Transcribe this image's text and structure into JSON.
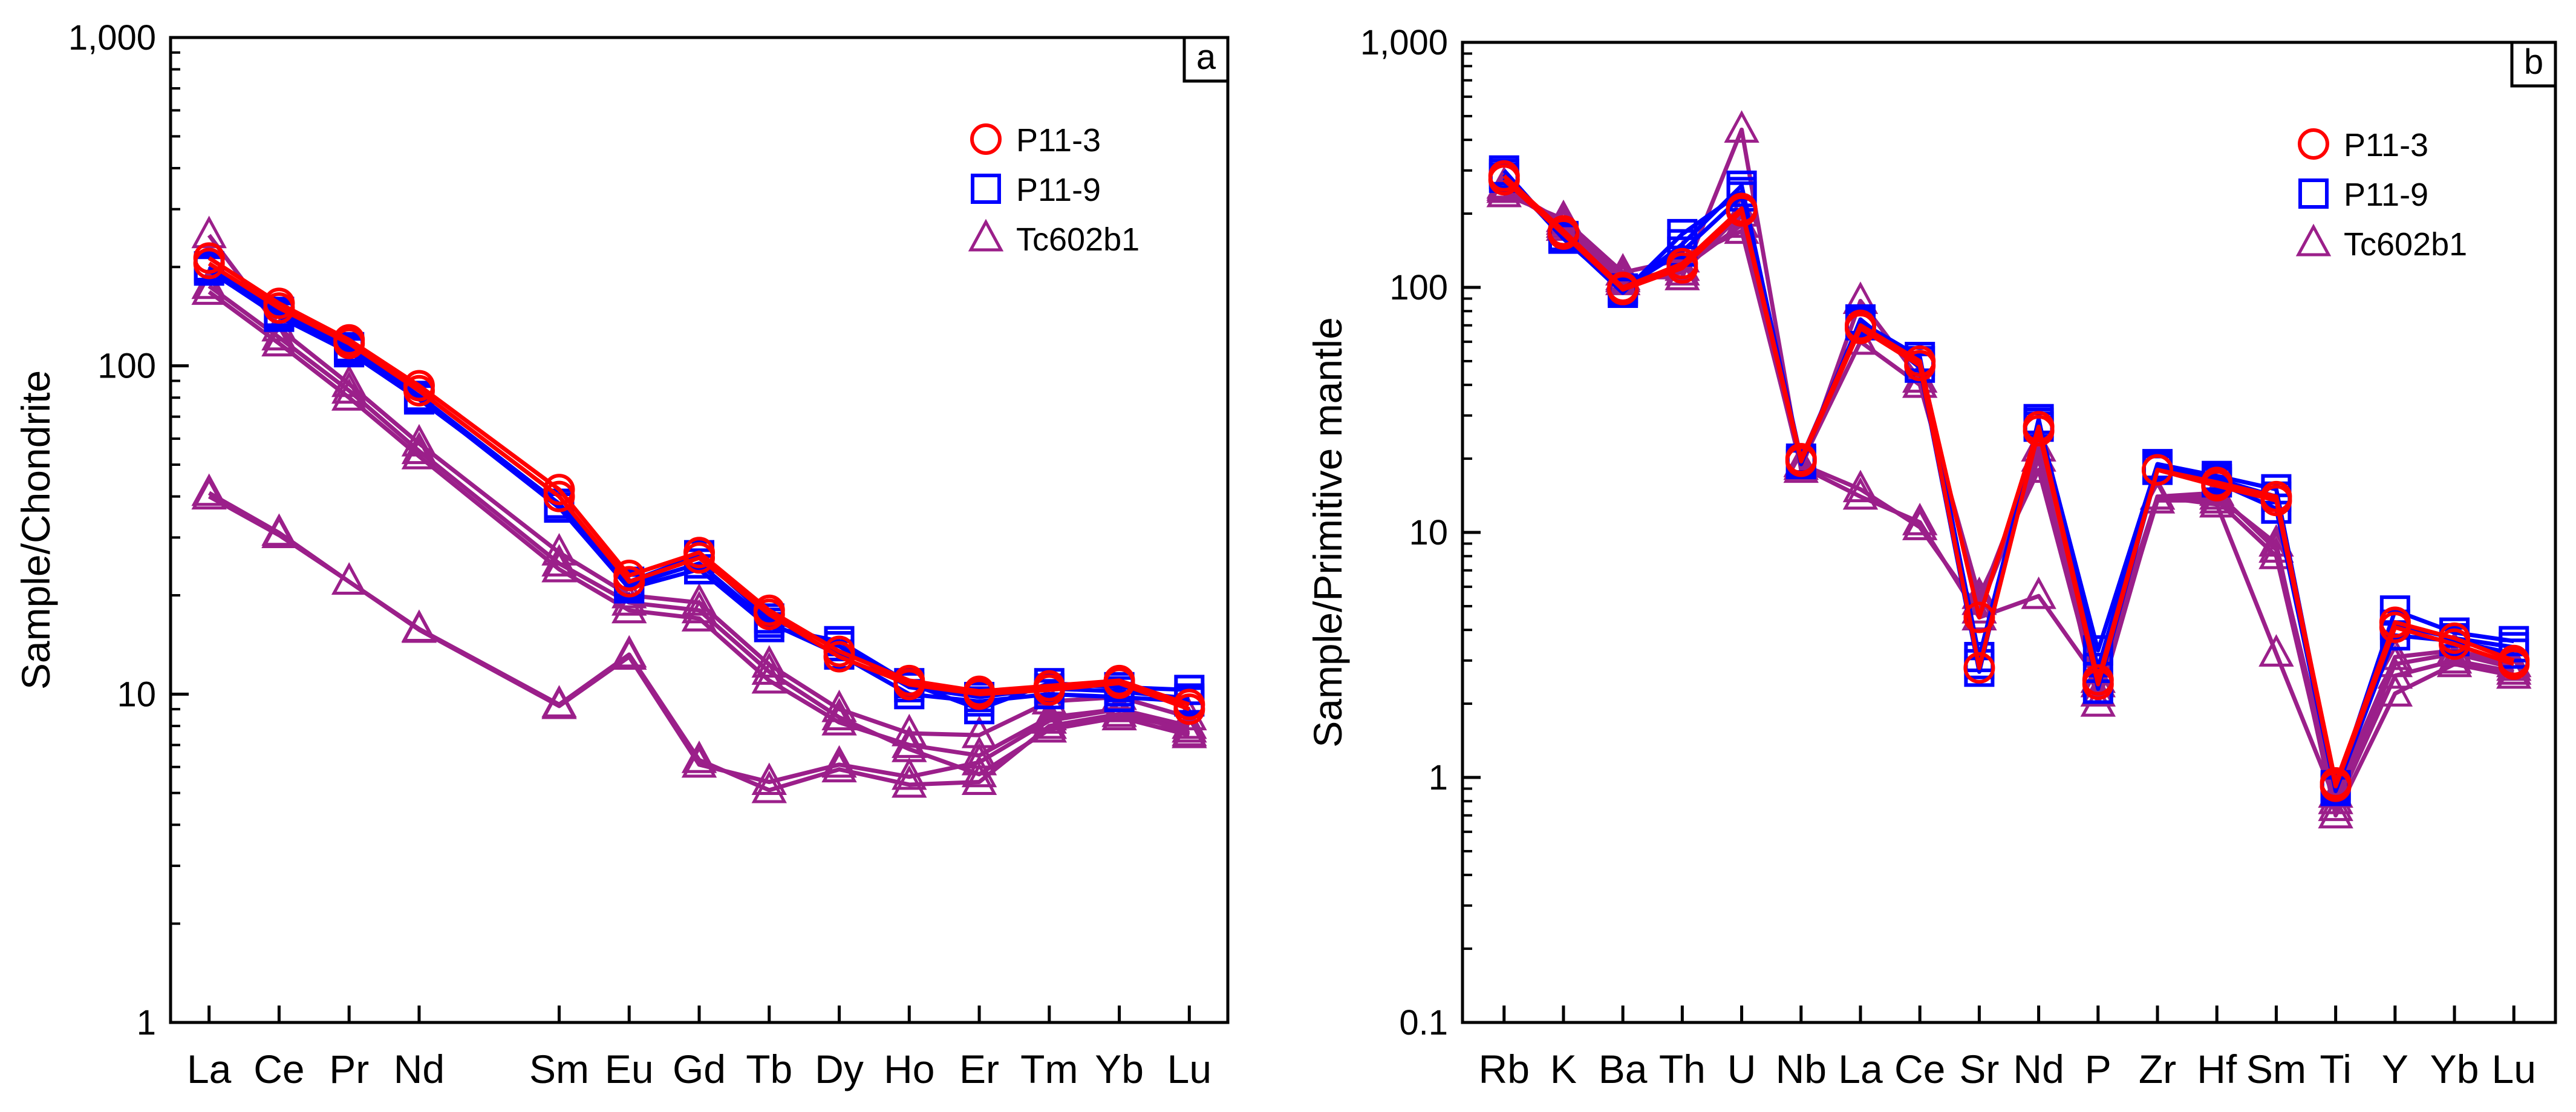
{
  "colors": {
    "p11_3": "#ff0000",
    "p11_9": "#0000ff",
    "tc602b1": "#9b1f8a",
    "axis": "#000000"
  },
  "chart_data": [
    {
      "type": "line",
      "panel_label": "a",
      "ylabel": "Sample/Chondrite",
      "yscale": "log",
      "ylim": [
        1,
        1000
      ],
      "y_ticks": [
        1,
        10,
        100,
        1000
      ],
      "y_tick_labels": [
        "1",
        "10",
        "100",
        "1,000"
      ],
      "categories": [
        "La",
        "Ce",
        "Pr",
        "Nd",
        "Sm",
        "Eu",
        "Gd",
        "Tb",
        "Dy",
        "Ho",
        "Er",
        "Tm",
        "Yb",
        "Lu"
      ],
      "x_positions": [
        1,
        2,
        3,
        4,
        6,
        7,
        8,
        9,
        10,
        11,
        12,
        13,
        14,
        15
      ],
      "legend": {
        "position": "top-right",
        "entries": [
          {
            "name": "P11-3",
            "marker": "circle",
            "color": "#ff0000"
          },
          {
            "name": "P11-9",
            "marker": "square",
            "color": "#0000ff"
          },
          {
            "name": "Tc602b1",
            "marker": "triangle",
            "color": "#9b1f8a"
          }
        ]
      },
      "series": [
        {
          "group": "P11-3",
          "marker": "circle",
          "color": "#ff0000",
          "values": [
            213,
            155,
            120,
            87,
            42,
            23,
            27,
            18,
            13.5,
            11,
            10.2,
            10.6,
            11,
            9.3
          ]
        },
        {
          "group": "P11-3",
          "marker": "circle",
          "color": "#ff0000",
          "values": [
            205,
            150,
            117,
            84,
            40,
            22,
            26,
            17.5,
            13,
            10.7,
            10,
            10.3,
            10.8,
            9
          ]
        },
        {
          "group": "P11-9",
          "marker": "square",
          "color": "#0000ff",
          "values": [
            198,
            143,
            112,
            80,
            37,
            21,
            24,
            16,
            14.5,
            10.8,
            9,
            10.8,
            10.5,
            10.3
          ]
        },
        {
          "group": "P11-9",
          "marker": "square",
          "color": "#0000ff",
          "values": [
            201,
            146,
            114,
            81,
            38,
            21.5,
            25,
            16.5,
            13.2,
            10,
            9.5,
            10,
            9.8,
            9.5
          ]
        },
        {
          "group": "P11-9",
          "marker": "square",
          "color": "#0000ff",
          "values": [
            195,
            141,
            110,
            79,
            38,
            22,
            26.5,
            17,
            14,
            10.5,
            9.8,
            10.4,
            10.2,
            9.7
          ]
        },
        {
          "group": "Tc602b1",
          "marker": "triangle",
          "color": "#9b1f8a",
          "values": [
            250,
            130,
            88,
            58,
            27,
            20,
            19,
            12.3,
            9,
            7.6,
            7.5,
            9.5,
            9.8,
            8.5
          ]
        },
        {
          "group": "Tc602b1",
          "marker": "triangle",
          "color": "#9b1f8a",
          "values": [
            168,
            117,
            80,
            53,
            24,
            18,
            17,
            11,
            8.2,
            7,
            6.5,
            8.5,
            9,
            8
          ]
        },
        {
          "group": "Tc602b1",
          "marker": "triangle",
          "color": "#9b1f8a",
          "values": [
            175,
            122,
            84,
            55,
            25,
            19,
            18,
            11.7,
            8.5,
            6.8,
            5.7,
            7.8,
            8.5,
            7.5
          ]
        },
        {
          "group": "Tc602b1",
          "marker": "triangle",
          "color": "#9b1f8a",
          "values": [
            41,
            31,
            22,
            15.8,
            9.3,
            13.2,
            6.3,
            5.1,
            5.9,
            5.3,
            5.4,
            8,
            8.7,
            7.8
          ]
        },
        {
          "group": "Tc602b1",
          "marker": "triangle",
          "color": "#9b1f8a",
          "values": [
            40,
            30.5,
            22,
            15.7,
            9.2,
            13,
            6.1,
            5.4,
            6.1,
            5.6,
            6.2,
            8.3,
            9,
            7.6
          ]
        }
      ]
    },
    {
      "type": "line",
      "panel_label": "b",
      "ylabel": "Sample/Primitive mantle",
      "yscale": "log",
      "ylim": [
        0.1,
        1000
      ],
      "y_ticks": [
        0.1,
        1,
        10,
        100,
        1000
      ],
      "y_tick_labels": [
        "0.1",
        "1",
        "10",
        "100",
        "1,000"
      ],
      "categories": [
        "Rb",
        "K",
        "Ba",
        "Th",
        "U",
        "Nb",
        "La",
        "Ce",
        "Sr",
        "Nd",
        "P",
        "Zr",
        "Hf",
        "Sm",
        "Ti",
        "Y",
        "Yb",
        "Lu"
      ],
      "x_positions": [
        1,
        2,
        3,
        4,
        5,
        6,
        7,
        8,
        9,
        10,
        11,
        12,
        13,
        14,
        15,
        16,
        17,
        18
      ],
      "legend": {
        "position": "top-right",
        "entries": [
          {
            "name": "P11-3",
            "marker": "circle",
            "color": "#ff0000"
          },
          {
            "name": "P11-9",
            "marker": "square",
            "color": "#0000ff"
          },
          {
            "name": "Tc602b1",
            "marker": "triangle",
            "color": "#9b1f8a"
          }
        ]
      },
      "series": [
        {
          "group": "P11-3",
          "marker": "circle",
          "color": "#ff0000",
          "values": [
            285,
            170,
            100,
            125,
            210,
            20,
            70,
            50,
            4.5,
            27,
            2.5,
            18,
            16,
            14,
            0.95,
            4.3,
            3.7,
            3.0
          ]
        },
        {
          "group": "P11-3",
          "marker": "circle",
          "color": "#ff0000",
          "values": [
            275,
            165,
            98,
            120,
            205,
            19.5,
            68,
            48,
            2.8,
            26,
            2.4,
            18,
            15.5,
            13.5,
            0.92,
            4.1,
            3.5,
            2.9
          ]
        },
        {
          "group": "P11-9",
          "marker": "square",
          "color": "#0000ff",
          "values": [
            300,
            160,
            95,
            165,
            245,
            20,
            72,
            52,
            3.1,
            28,
            3.3,
            19,
            17,
            15,
            0.9,
            4.8,
            3.9,
            3.6
          ]
        },
        {
          "group": "P11-9",
          "marker": "square",
          "color": "#0000ff",
          "values": [
            290,
            158,
            97,
            150,
            260,
            19,
            74,
            47,
            2.7,
            29,
            2.3,
            18,
            16,
            12.5,
            0.88,
            3.8,
            3.6,
            3.2
          ]
        },
        {
          "group": "P11-9",
          "marker": "square",
          "color": "#0000ff",
          "values": [
            280,
            162,
            99,
            140,
            235,
            19.5,
            70,
            50,
            2.9,
            27,
            2.8,
            18.5,
            16.5,
            14,
            0.93,
            4.2,
            3.7,
            3.4
          ]
        },
        {
          "group": "Tc602b1",
          "marker": "triangle",
          "color": "#9b1f8a",
          "values": [
            250,
            180,
            110,
            110,
            440,
            18,
            88,
            42,
            5.2,
            22,
            2.0,
            14,
            14,
            9,
            0.7,
            2.2,
            2.9,
            2.6
          ]
        },
        {
          "group": "Tc602b1",
          "marker": "triangle",
          "color": "#9b1f8a",
          "values": [
            240,
            190,
            115,
            130,
            170,
            19,
            60,
            40,
            5.5,
            18,
            2.2,
            13.5,
            13.5,
            8,
            0.75,
            2.6,
            3.0,
            2.7
          ]
        },
        {
          "group": "Tc602b1",
          "marker": "triangle",
          "color": "#9b1f8a",
          "values": [
            260,
            175,
            105,
            120,
            180,
            18.5,
            14,
            11,
            4.5,
            5.5,
            2.5,
            14,
            13,
            3.2,
            0.8,
            2.9,
            3.2,
            2.8
          ]
        },
        {
          "group": "Tc602b1",
          "marker": "triangle",
          "color": "#9b1f8a",
          "values": [
            255,
            185,
            108,
            115,
            200,
            19,
            15,
            10.5,
            4.8,
            20,
            2.4,
            14,
            14.5,
            8.5,
            0.85,
            3.1,
            3.3,
            2.9
          ]
        }
      ]
    }
  ]
}
